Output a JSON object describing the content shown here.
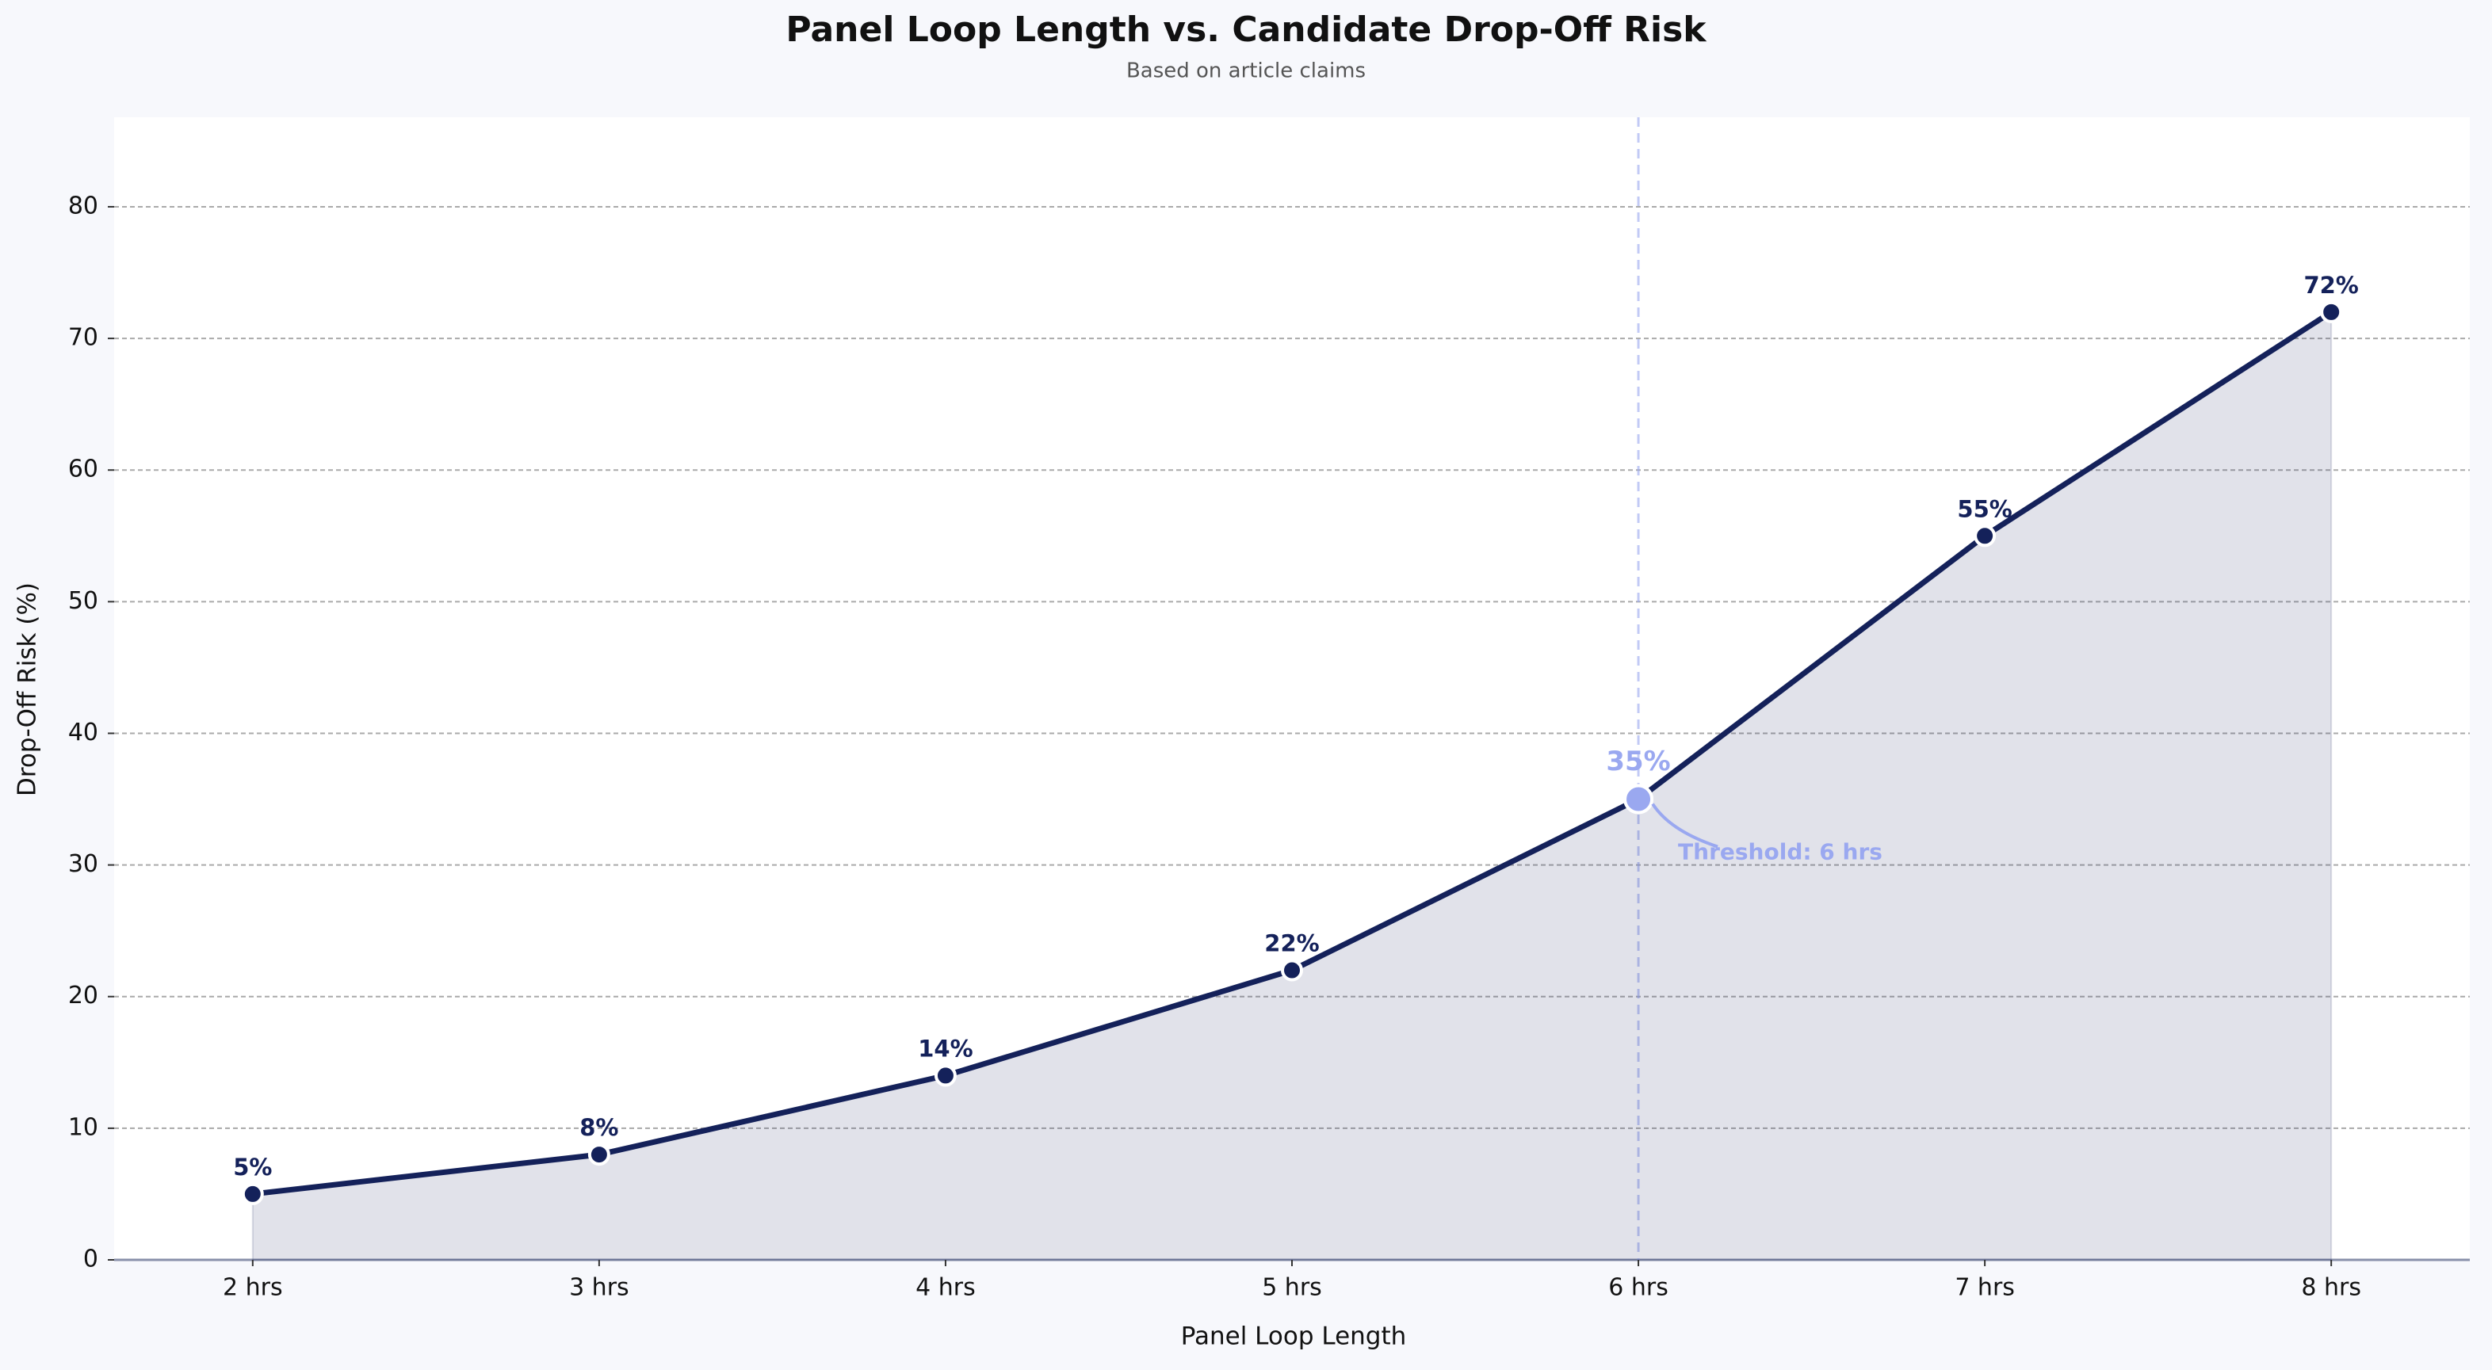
{
  "chart_data": {
    "type": "line",
    "title": "Panel Loop Length vs. Candidate Drop-Off Risk",
    "subtitle": "Based on article claims",
    "x_label": "Panel Loop Length",
    "y_label": "Drop-Off Risk (%)",
    "categories": [
      "2 hrs",
      "3 hrs",
      "4 hrs",
      "5 hrs",
      "6 hrs",
      "7 hrs",
      "8 hrs"
    ],
    "series": [
      {
        "name": "Drop-Off Risk",
        "color": "#14215a",
        "values": [
          5,
          8,
          14,
          22,
          35,
          55,
          72
        ],
        "value_labels": [
          "5%",
          "8%",
          "14%",
          "22%",
          "35%",
          "55%",
          "72%"
        ]
      }
    ],
    "ylim": [
      0,
      86.8
    ],
    "yticks": [
      0,
      10,
      20,
      30,
      40,
      50,
      60,
      70,
      80
    ],
    "grid": true,
    "highlight": {
      "category": "6 hrs",
      "color": "#9aa8f0",
      "annotation": "Threshold: 6 hrs"
    }
  }
}
